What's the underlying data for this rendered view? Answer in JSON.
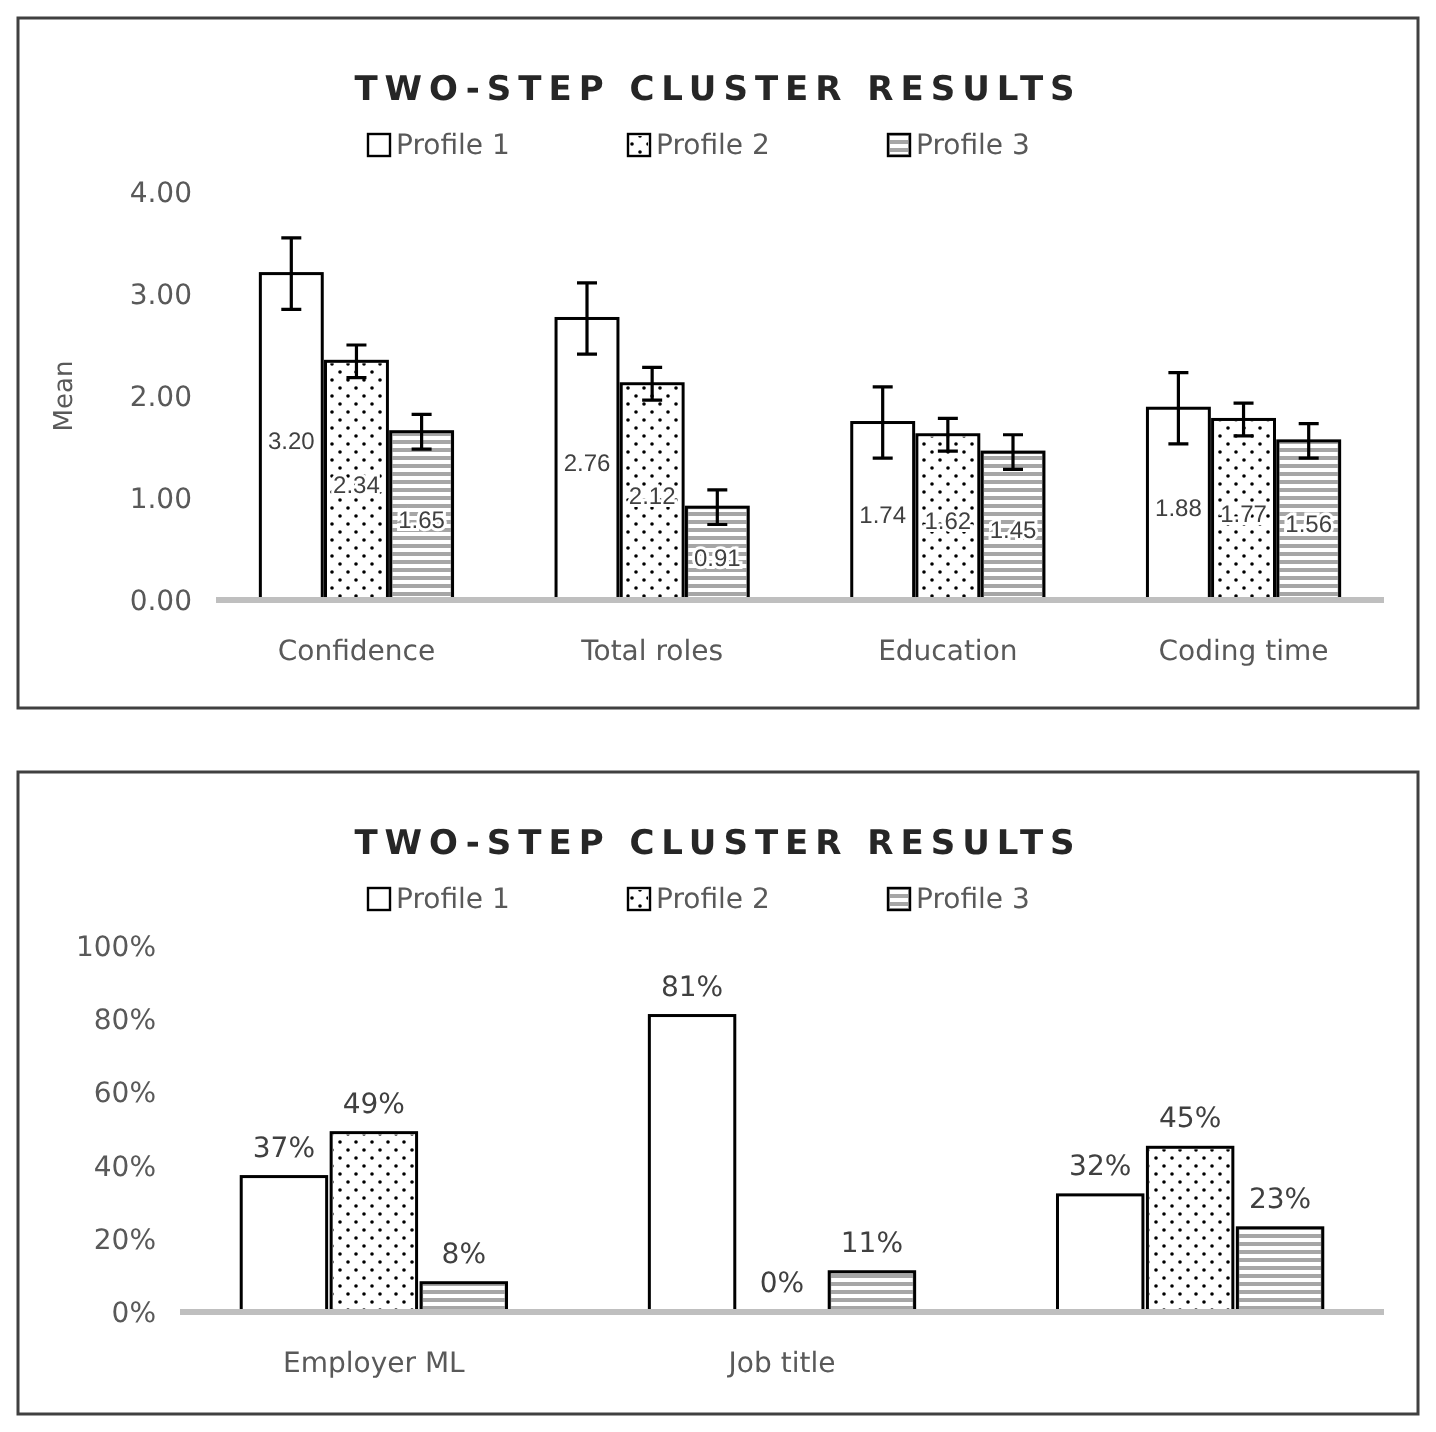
{
  "chart_data": [
    {
      "type": "bar",
      "title": "TWO-STEP CLUSTER RESULTS",
      "ylabel": "Mean",
      "categories": [
        "Confidence",
        "Total roles",
        "Education",
        "Coding time"
      ],
      "series": [
        {
          "name": "Profile 1",
          "color": "#ffffff",
          "values": [
            3.2,
            2.76,
            1.74,
            1.88
          ],
          "value_labels": [
            "3.20",
            "2.76",
            "1.74",
            "1.88"
          ],
          "errors": [
            0.35,
            0.35,
            0.35,
            0.35
          ]
        },
        {
          "name": "Profile 2",
          "color": "#ffffff",
          "values": [
            2.34,
            2.12,
            1.62,
            1.77
          ],
          "value_labels": [
            "2.34",
            "2.12",
            "1.62",
            "1.77"
          ],
          "errors": [
            0.16,
            0.16,
            0.16,
            0.16
          ]
        },
        {
          "name": "Profile 3",
          "color": "#a6a6a6",
          "values": [
            1.65,
            0.91,
            1.45,
            1.56
          ],
          "value_labels": [
            "1.65",
            "0.91",
            "1.45",
            "1.56"
          ],
          "errors": [
            0.17,
            0.17,
            0.17,
            0.17
          ]
        }
      ],
      "ylim": [
        0,
        4
      ],
      "yticks": [
        {
          "value": 0,
          "label": "0.00"
        },
        {
          "value": 1,
          "label": "1.00"
        },
        {
          "value": 2,
          "label": "2.00"
        },
        {
          "value": 3,
          "label": "3.00"
        },
        {
          "value": 4,
          "label": "4.00"
        }
      ],
      "legend": "top",
      "grid": false
    },
    {
      "type": "bar",
      "title": "TWO-STEP CLUSTER RESULTS",
      "categories": [
        "Employer ML",
        "Job title",
        null
      ],
      "series": [
        {
          "name": "Profile 1",
          "color": "#ffffff",
          "values": [
            37,
            81,
            32
          ],
          "value_labels": [
            "37%",
            "81%",
            "32%"
          ]
        },
        {
          "name": "Profile 2",
          "color": "#ffffff",
          "values": [
            49,
            0,
            45
          ],
          "value_labels": [
            "49%",
            "0%",
            "45%"
          ]
        },
        {
          "name": "Profile 3",
          "color": "#a6a6a6",
          "values": [
            8,
            11,
            23
          ],
          "value_labels": [
            "8%",
            "11%",
            "23%"
          ]
        }
      ],
      "ylim": [
        0,
        100
      ],
      "yticks": [
        {
          "value": 0,
          "label": "0%"
        },
        {
          "value": 20,
          "label": "20%"
        },
        {
          "value": 40,
          "label": "40%"
        },
        {
          "value": 60,
          "label": "60%"
        },
        {
          "value": 80,
          "label": "80%"
        },
        {
          "value": 100,
          "label": "100%"
        }
      ],
      "legend": "top",
      "grid": false
    }
  ]
}
